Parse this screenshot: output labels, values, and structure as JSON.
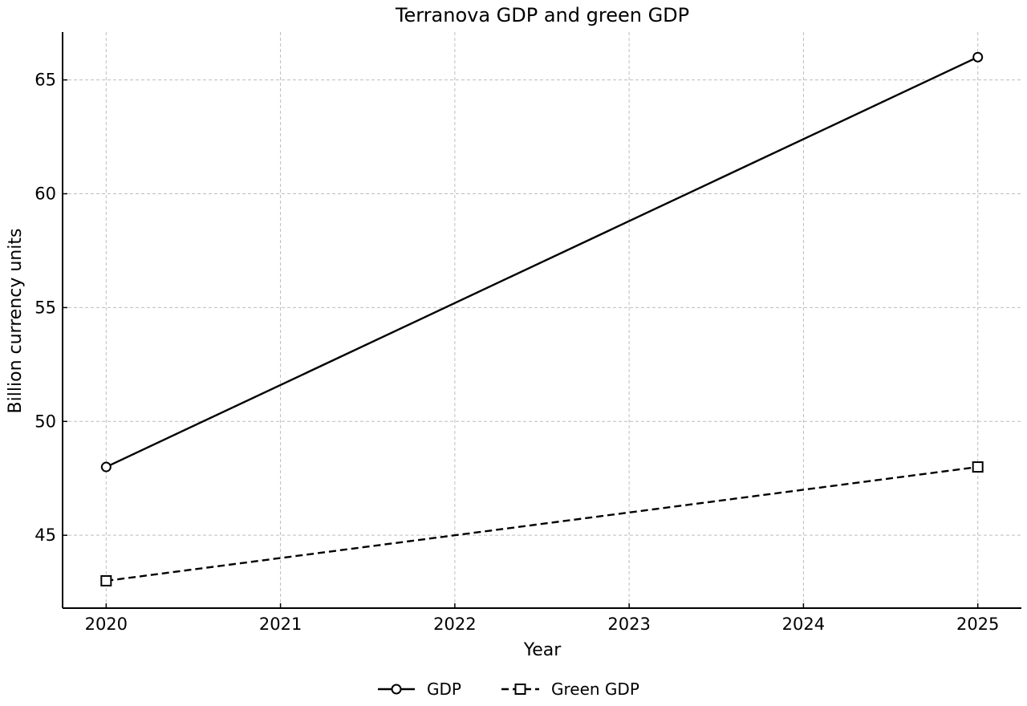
{
  "chart_data": {
    "type": "line",
    "title": "Terranova GDP and green GDP",
    "xlabel": "Year",
    "ylabel": "Billion currency units",
    "x": [
      2020,
      2025
    ],
    "xticks": [
      "2020",
      "2021",
      "2022",
      "2023",
      "2024",
      "2025"
    ],
    "yticks": [
      "45",
      "50",
      "55",
      "60",
      "65"
    ],
    "xlim": [
      2019.75,
      2025.25
    ],
    "ylim": [
      41.8,
      67.1
    ],
    "grid": true,
    "legend_position": "bottom-center",
    "series": [
      {
        "name": "GDP",
        "values": [
          48,
          66
        ],
        "line_style": "solid",
        "marker": "circle",
        "color": "#000000"
      },
      {
        "name": "Green GDP",
        "values": [
          43,
          48
        ],
        "line_style": "dashed",
        "marker": "square",
        "color": "#000000"
      }
    ]
  }
}
